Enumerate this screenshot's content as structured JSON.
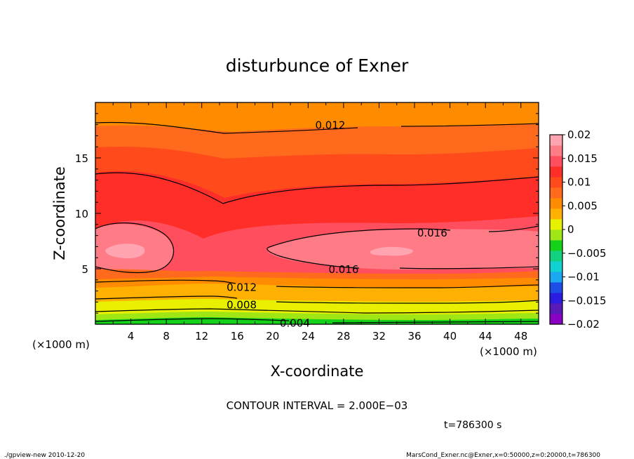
{
  "chart_data": {
    "type": "heatmap",
    "title": "disturbunce of Exner",
    "xlabel": "X-coordinate",
    "ylabel": "Z-coordinate",
    "x_unit_left": "(×1000 m)",
    "x_unit_right": "(×1000 m)",
    "xlim": [
      0,
      50
    ],
    "ylim": [
      0,
      20
    ],
    "x_ticks": [
      4,
      8,
      12,
      16,
      20,
      24,
      28,
      32,
      36,
      40,
      44,
      48
    ],
    "x_tick_labels": [
      "4",
      "8",
      "12",
      "16",
      "20",
      "24",
      "28",
      "32",
      "36",
      "40",
      "44",
      "48"
    ],
    "y_ticks": [
      5,
      10,
      15
    ],
    "y_tick_labels": [
      "5",
      "10",
      "15"
    ],
    "colorbar": {
      "range": [
        -0.02,
        0.02
      ],
      "tick_values": [
        0.02,
        0.015,
        0.01,
        0.005,
        0,
        -0.005,
        -0.01,
        -0.015,
        -0.02
      ],
      "tick_labels": [
        "0.02",
        "0.015",
        "0.01",
        "0.005",
        "0",
        "−0.005",
        "−0.01",
        "−0.015",
        "−0.02"
      ]
    },
    "contour_interval_text": "CONTOUR INTERVAL = 2.000E−03",
    "contour_labels": [
      {
        "text": "0.012",
        "x": 26.5,
        "z": 18.0
      },
      {
        "text": "0.016",
        "x": 38.0,
        "z": 8.3
      },
      {
        "text": "0.016",
        "x": 28.0,
        "z": 5.0
      },
      {
        "text": "0.012",
        "x": 16.5,
        "z": 3.4
      },
      {
        "text": "0.008",
        "x": 16.5,
        "z": 1.8
      },
      {
        "text": "0.004",
        "x": 22.5,
        "z": 0.15
      }
    ],
    "time_text": "t=786300 s",
    "footer_left": "./gpview-new  2010-12-20",
    "footer_right": "MarsCond_Exner.nc@Exner,x=0:50000,z=0:20000,t=786300"
  },
  "colors": {
    "levels": [
      "#8a00c4",
      "#5a1ab8",
      "#2a1ce0",
      "#1e4ee8",
      "#1aa8f0",
      "#10d2d2",
      "#10d280",
      "#14d21a",
      "#a0e614",
      "#e8f000",
      "#ffb000",
      "#ff8c00",
      "#ff6a1c",
      "#ff4a1c",
      "#ff2e28",
      "#ff4e5e",
      "#ff7b85",
      "#ffa4b0"
    ],
    "background": "#ffffff"
  }
}
